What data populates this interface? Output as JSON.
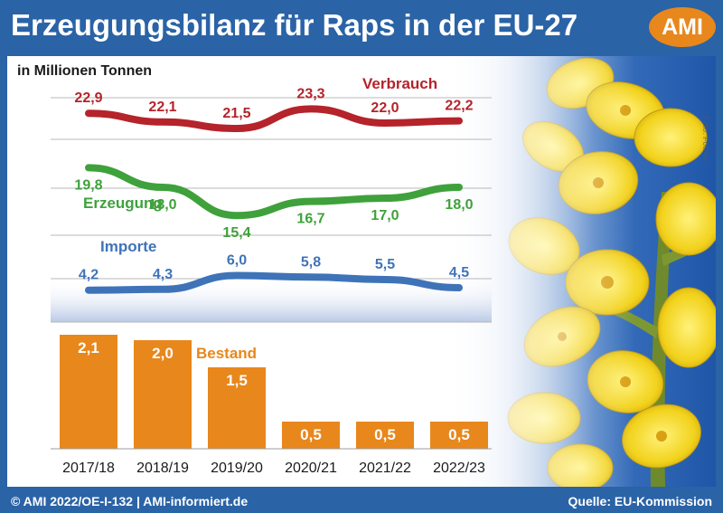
{
  "header": {
    "title": "Erzeugungsbilanz für Raps in der EU-27",
    "logo": "AMI"
  },
  "footer": {
    "left": "© AMI 2022/OE-I-132 | AMI-informiert.de",
    "right": "Quelle: EU-Kommission"
  },
  "photo_credit": "Foto: Fotolia",
  "chart_data": {
    "type": "line",
    "unit_label": "in Millionen Tonnen",
    "categories": [
      "2017/18",
      "2018/19",
      "2019/20",
      "2020/21",
      "2021/22",
      "2022/23"
    ],
    "grid": true,
    "series": [
      {
        "name": "Verbrauch",
        "color": "#b5232b",
        "values": [
          22.9,
          22.1,
          21.5,
          23.3,
          22.0,
          22.2
        ],
        "labels": [
          "22,9",
          "22,1",
          "21,5",
          "23,3",
          "22,0",
          "22,2"
        ]
      },
      {
        "name": "Erzeugung",
        "color": "#3fa13b",
        "values": [
          19.8,
          18.0,
          15.4,
          16.7,
          17.0,
          18.0
        ],
        "labels": [
          "19,8",
          "18,0",
          "15,4",
          "16,7",
          "17,0",
          "18,0"
        ]
      },
      {
        "name": "Importe",
        "color": "#3f73b8",
        "values": [
          4.2,
          4.3,
          6.0,
          5.8,
          5.5,
          4.5
        ],
        "labels": [
          "4,2",
          "4,3",
          "6,0",
          "5,8",
          "5,5",
          "4,5"
        ]
      }
    ],
    "bar_series": {
      "name": "Bestand",
      "type": "bar",
      "color": "#e8871c",
      "values": [
        2.1,
        2.0,
        1.5,
        0.5,
        0.5,
        0.5
      ],
      "labels": [
        "2,1",
        "2,0",
        "1,5",
        "0,5",
        "0,5",
        "0,5"
      ]
    }
  }
}
